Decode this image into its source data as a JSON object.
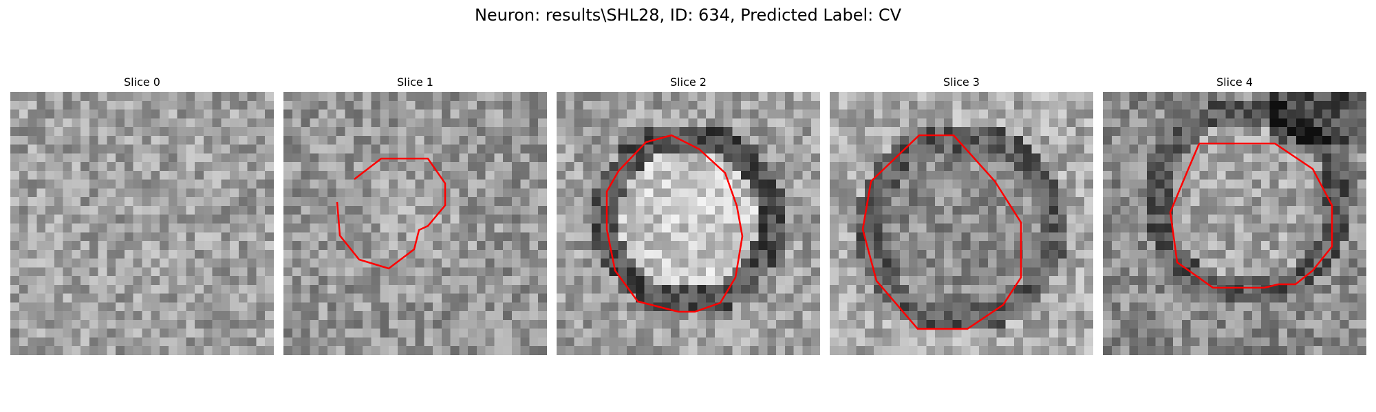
{
  "figure": {
    "title": "Neuron: results\\SHL28, ID: 634, Predicted Label: CV"
  },
  "slices": [
    {
      "label": "Slice 0",
      "has_contour": false,
      "seed": 11
    },
    {
      "label": "Slice 1",
      "has_contour": true,
      "seed": 23
    },
    {
      "label": "Slice 2",
      "has_contour": true,
      "seed": 37
    },
    {
      "label": "Slice 3",
      "has_contour": true,
      "seed": 51
    },
    {
      "label": "Slice 4",
      "has_contour": true,
      "seed": 67
    }
  ],
  "style": {
    "contour_color": "#ff0000",
    "colormap": "gray"
  }
}
